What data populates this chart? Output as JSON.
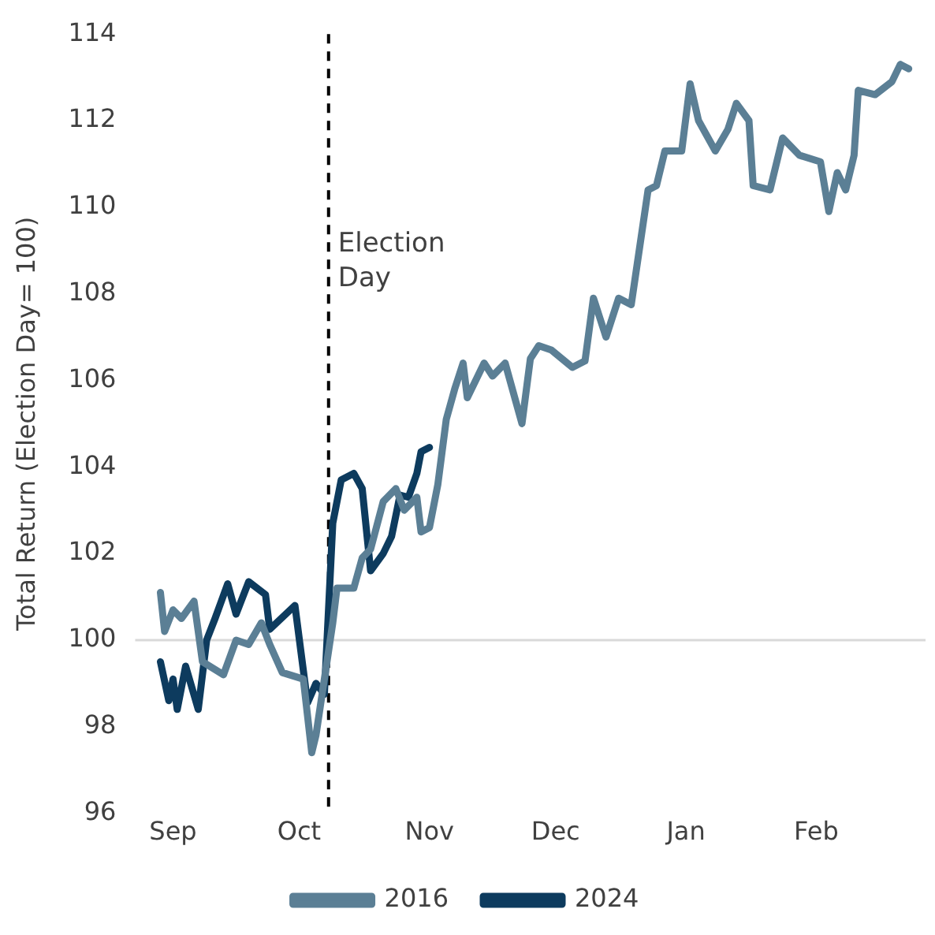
{
  "chart_data": {
    "type": "line",
    "ylabel": "Total Return (Election Day= 100)",
    "xlim": [
      "2016-08-23",
      "2017-02-27"
    ],
    "xticks": [
      {
        "value": "2016-09-01",
        "label": "Sep"
      },
      {
        "value": "2016-10-01",
        "label": "Oct"
      },
      {
        "value": "2016-11-01",
        "label": "Nov"
      },
      {
        "value": "2016-12-01",
        "label": "Dec"
      },
      {
        "value": "2017-01-01",
        "label": "Jan"
      },
      {
        "value": "2017-02-01",
        "label": "Feb"
      }
    ],
    "ylim": [
      96,
      114
    ],
    "yticks": [
      96,
      98,
      100,
      102,
      104,
      106,
      108,
      110,
      112,
      114
    ],
    "grid": false,
    "legend": "bottom",
    "marker": "none",
    "line_style": "solid",
    "ref_lines": [
      {
        "axis": "x",
        "value": "2016-10-08",
        "label": "Election Day",
        "color": "#000000",
        "line_style": "dashed"
      },
      {
        "axis": "y",
        "value": 100,
        "color": "#d9d9d9",
        "line_style": "solid"
      }
    ],
    "series": [
      {
        "name": "2016",
        "color": "#5b7f95",
        "x": [
          "2016-08-29",
          "2016-08-30",
          "2016-09-01",
          "2016-09-03",
          "2016-09-06",
          "2016-09-08",
          "2016-09-13",
          "2016-09-16",
          "2016-09-19",
          "2016-09-22",
          "2016-09-24",
          "2016-09-27",
          "2016-10-02",
          "2016-10-04",
          "2016-10-05",
          "2016-10-09",
          "2016-10-10",
          "2016-10-14",
          "2016-10-16",
          "2016-10-18",
          "2016-10-21",
          "2016-10-24",
          "2016-10-26",
          "2016-10-29",
          "2016-10-30",
          "2016-11-01",
          "2016-11-03",
          "2016-11-05",
          "2016-11-07",
          "2016-11-09",
          "2016-11-10",
          "2016-11-14",
          "2016-11-16",
          "2016-11-19",
          "2016-11-23",
          "2016-11-25",
          "2016-11-27",
          "2016-11-30",
          "2016-12-05",
          "2016-12-08",
          "2016-12-10",
          "2016-12-13",
          "2016-12-16",
          "2016-12-19",
          "2016-12-23",
          "2016-12-25",
          "2016-12-27",
          "2016-12-31",
          "2017-01-02",
          "2017-01-04",
          "2017-01-08",
          "2017-01-11",
          "2017-01-13",
          "2017-01-16",
          "2017-01-17",
          "2017-01-21",
          "2017-01-24",
          "2017-01-28",
          "2017-02-02",
          "2017-02-04",
          "2017-02-06",
          "2017-02-08",
          "2017-02-10",
          "2017-02-11",
          "2017-02-15",
          "2017-02-19",
          "2017-02-21",
          "2017-02-23"
        ],
        "values": [
          101.1,
          100.2,
          100.7,
          100.5,
          100.9,
          99.5,
          99.2,
          100.0,
          99.9,
          100.4,
          99.9,
          99.25,
          99.1,
          97.4,
          97.8,
          100.4,
          101.2,
          101.2,
          101.9,
          102.1,
          103.2,
          103.5,
          103.0,
          103.3,
          102.5,
          102.6,
          103.6,
          105.1,
          105.8,
          106.4,
          105.6,
          106.4,
          106.1,
          106.4,
          105.0,
          106.5,
          106.8,
          106.7,
          106.3,
          106.45,
          107.9,
          107.0,
          107.9,
          107.75,
          110.4,
          110.5,
          111.3,
          111.3,
          112.85,
          112.0,
          111.3,
          111.8,
          112.4,
          112.0,
          110.5,
          110.4,
          111.6,
          111.2,
          111.05,
          109.9,
          110.8,
          110.4,
          111.2,
          112.7,
          112.6,
          112.9,
          113.3,
          113.2
        ]
      },
      {
        "name": "2024",
        "color": "#0d3b5e",
        "x": [
          "2016-08-29",
          "2016-08-31",
          "2016-09-01",
          "2016-09-02",
          "2016-09-04",
          "2016-09-07",
          "2016-09-09",
          "2016-09-11",
          "2016-09-14",
          "2016-09-16",
          "2016-09-19",
          "2016-09-23",
          "2016-09-24",
          "2016-09-30",
          "2016-10-03",
          "2016-10-05",
          "2016-10-07",
          "2016-10-09",
          "2016-10-11",
          "2016-10-14",
          "2016-10-16",
          "2016-10-18",
          "2016-10-21",
          "2016-10-23",
          "2016-10-25",
          "2016-10-27",
          "2016-10-29",
          "2016-10-30",
          "2016-11-01"
        ],
        "values": [
          99.5,
          98.6,
          99.1,
          98.4,
          99.4,
          98.4,
          100.0,
          100.5,
          101.3,
          100.6,
          101.35,
          101.05,
          100.25,
          100.8,
          98.55,
          99.0,
          98.75,
          102.7,
          103.7,
          103.85,
          103.5,
          101.6,
          102.0,
          102.4,
          103.35,
          103.3,
          103.85,
          104.35,
          104.45
        ]
      }
    ]
  }
}
